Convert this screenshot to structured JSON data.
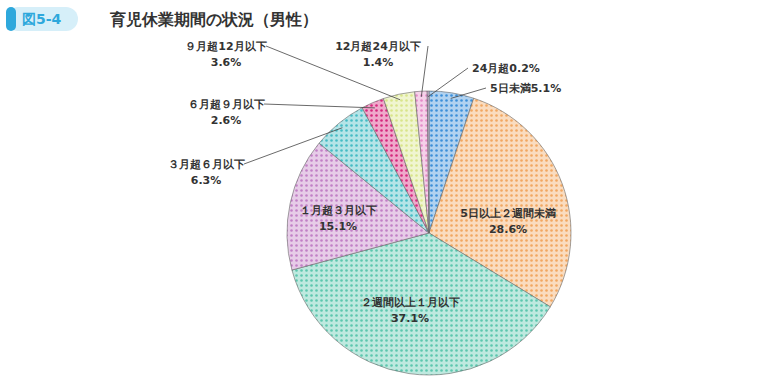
{
  "chart_data": {
    "type": "pie",
    "title": "育児休業期間の状況（男性）",
    "annotations": [
      "図5-4"
    ],
    "categories": [
      "5日未満",
      "5日以上２週間未満",
      "２週間以上１月以下",
      "１月超３月以下",
      "３月超６月以下",
      "６月超９月以下",
      "９月超12月以下",
      "12月超24月以下",
      "24月超"
    ],
    "values": [
      5.1,
      28.6,
      37.1,
      15.1,
      6.3,
      2.6,
      3.6,
      1.4,
      0.2
    ],
    "value_labels": [
      "5.1%",
      "28.6%",
      "37.1%",
      "15.1%",
      "6.3%",
      "2.6%",
      "3.6%",
      "1.4%",
      "0.2%"
    ],
    "colors": [
      "#3b8fd9",
      "#f2a760",
      "#5cc7ae",
      "#c27fc6",
      "#45bcc4",
      "#d6277c",
      "#d9e58a",
      "#e58bc8",
      "#8a55a8"
    ],
    "data_labels": true
  }
}
